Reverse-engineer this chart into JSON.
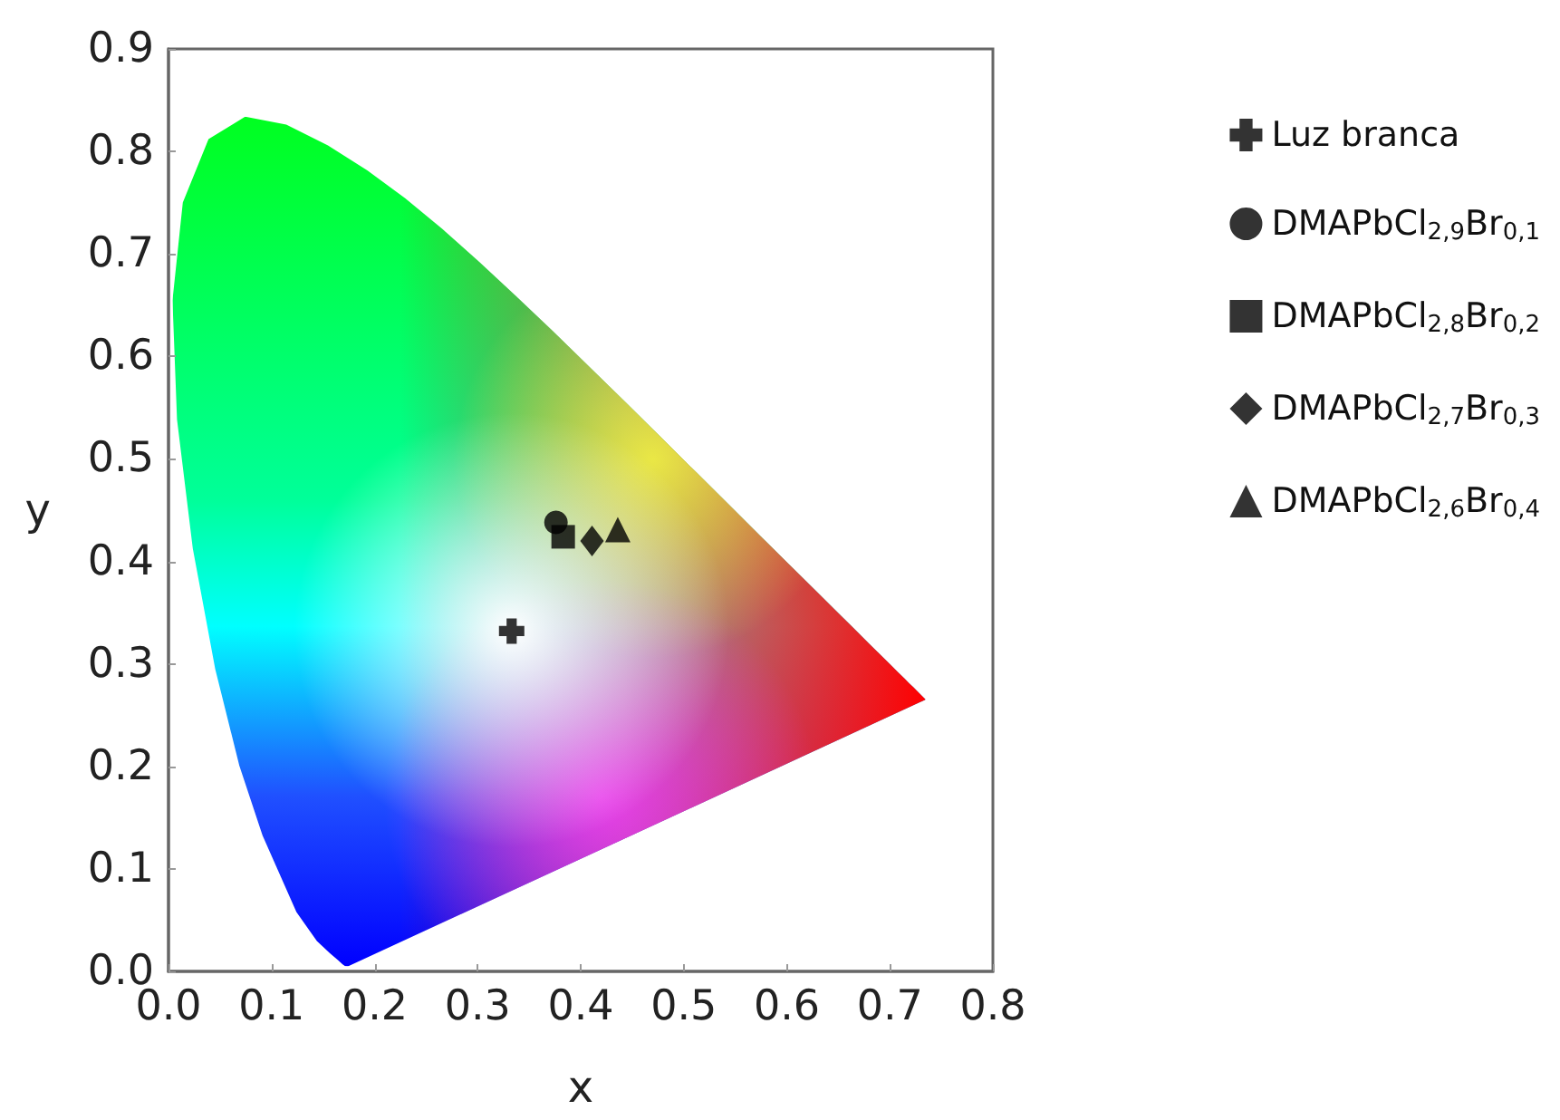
{
  "chart_data": {
    "type": "scatter",
    "xlabel": "x",
    "ylabel": "y",
    "xlim": [
      0,
      0.8
    ],
    "xticks": [
      {
        "value": 0,
        "label": "0.0"
      },
      0.1,
      0.2,
      0.3,
      0.4,
      0.5,
      0.6,
      0.7,
      0.8
    ],
    "ylim": [
      0,
      0.9
    ],
    "yticks": [
      {
        "value": 0,
        "label": "0.0"
      },
      0.1,
      0.2,
      0.3,
      0.4,
      0.5,
      0.6,
      0.7,
      0.8,
      0.9
    ],
    "grid": false,
    "legend": "right",
    "series": [
      {
        "name": "Luz branca",
        "color": "#000000",
        "marker": "cross",
        "x": [
          0.333
        ],
        "values": [
          0.332
        ]
      },
      {
        "name": "DMAPbCl$_{2,9}$Br$_{0,1}$",
        "color": "#000000",
        "marker": "circle",
        "x": [
          0.376
        ],
        "values": [
          0.438
        ]
      },
      {
        "name": "DMAPbCl$_{2,8}$Br$_{0,2}$",
        "color": "#000000",
        "marker": "square",
        "x": [
          0.383
        ],
        "values": [
          0.424
        ]
      },
      {
        "name": "DMAPbCl$_{2,7}$Br$_{0,3}$",
        "color": "#000000",
        "marker": "diamond",
        "x": [
          0.411
        ],
        "values": [
          0.42
        ]
      },
      {
        "name": "DMAPbCl$_{2,6}$Br$_{0,4}$",
        "color": "#000000",
        "marker": "triangle",
        "x": [
          0.436
        ],
        "values": [
          0.431
        ]
      }
    ]
  }
}
